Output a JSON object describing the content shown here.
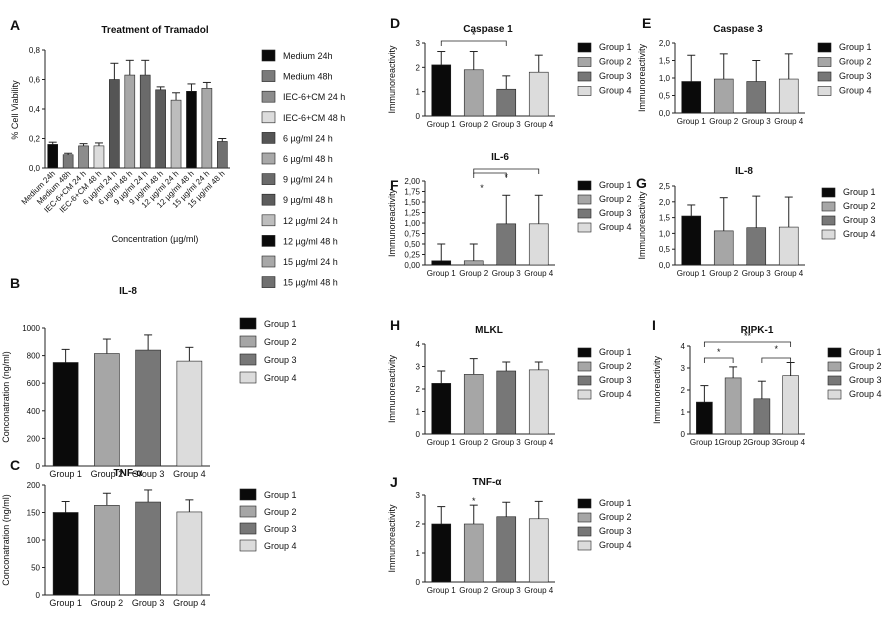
{
  "chart_data": [
    {
      "panel": "A",
      "type": "bar",
      "title": "Treatment of Tramadol",
      "xlabel": "Concentration (µg/ml)",
      "ylabel": "% Cell Viability",
      "ylim": [
        0,
        0.8
      ],
      "yticks": [
        "0,0",
        "0,2",
        "0,4",
        "0,6",
        "0,8"
      ],
      "categories": [
        "Medium 24h",
        "Medium 48h",
        "IEC-6+CM 24 h",
        "IEC-6+CM 48 h",
        "6 µg/ml 24 h",
        "6 µg/ml 48 h",
        "9 µg/ml 24 h",
        "9 µg/ml 48 h",
        "12 µg/ml 24 h",
        "12 µg/ml 48 h",
        "15 µg/ml 24 h",
        "15 µg/ml 48 h"
      ],
      "values": [
        0.16,
        0.09,
        0.15,
        0.15,
        0.6,
        0.63,
        0.63,
        0.53,
        0.46,
        0.52,
        0.54,
        0.18
      ],
      "errors": [
        0.015,
        0.01,
        0.015,
        0.02,
        0.11,
        0.1,
        0.1,
        0.02,
        0.05,
        0.05,
        0.04,
        0.02
      ],
      "colors": [
        "#0a0a0a",
        "#7a7a7a",
        "#8c8c8c",
        "#dcdcdc",
        "#555555",
        "#a8a8a8",
        "#6a6a6a",
        "#5c5c5c",
        "#bdbdbd",
        "#0a0a0a",
        "#a8a8a8",
        "#707070"
      ],
      "legend": [
        "Medium 24h",
        "Medium 48h",
        "IEC-6+CM 24 h",
        "IEC-6+CM 48 h",
        "6 µg/ml 24 h",
        "6 µg/ml 48 h",
        "9 µg/ml 24 h",
        "9 µg/ml 48 h",
        "12 µg/ml 24 h",
        "12 µg/ml 48 h",
        "15 µg/ml 24 h",
        "15 µg/ml 48 h"
      ]
    },
    {
      "panel": "B",
      "type": "bar",
      "title": "IL-8",
      "ylabel": "Conconatration (ng/ml)",
      "ylim": [
        0,
        1000
      ],
      "yticks": [
        "0",
        "200",
        "400",
        "600",
        "800",
        "1000"
      ],
      "categories": [
        "Group 1",
        "Group 2",
        "Group 3",
        "Group 4"
      ],
      "values": [
        750,
        815,
        840,
        760
      ],
      "errors": [
        95,
        105,
        110,
        100
      ],
      "legend": [
        "Group 1",
        "Group 2",
        "Group 3",
        "Group 4"
      ]
    },
    {
      "panel": "C",
      "type": "bar",
      "title": "TNF-α",
      "ylabel": "Conconatration (ng/ml)",
      "ylim": [
        0,
        200
      ],
      "yticks": [
        "0",
        "50",
        "100",
        "150",
        "200"
      ],
      "categories": [
        "Group 1",
        "Group 2",
        "Group 3",
        "Group 4"
      ],
      "values": [
        150,
        163,
        169,
        151
      ],
      "errors": [
        20,
        22,
        22,
        22
      ],
      "legend": [
        "Group 1",
        "Group 2",
        "Group 3",
        "Group 4"
      ]
    },
    {
      "panel": "D",
      "type": "bar",
      "title": "Caspase 1",
      "ylabel": "Immunoreactivity",
      "ylim": [
        0,
        3
      ],
      "yticks": [
        "0",
        "1",
        "2",
        "3"
      ],
      "categories": [
        "Group 1",
        "Group 2",
        "Group 3",
        "Group 4"
      ],
      "values": [
        2.1,
        1.9,
        1.1,
        1.8
      ],
      "errors": [
        0.55,
        0.75,
        0.55,
        0.7
      ],
      "legend": [
        "Group 1",
        "Group 2",
        "Group 3",
        "Group 4"
      ],
      "significance": [
        {
          "from": 0,
          "to": 2,
          "label": "*"
        }
      ]
    },
    {
      "panel": "E",
      "type": "bar",
      "title": "Caspase 3",
      "ylabel": "Immunoreactivity",
      "ylim": [
        0,
        2
      ],
      "yticks": [
        "0,0",
        "0,5",
        "1,0",
        "1,5",
        "2,0"
      ],
      "categories": [
        "Group 1",
        "Group 2",
        "Group 3",
        "Group 4"
      ],
      "values": [
        0.9,
        0.97,
        0.9,
        0.97
      ],
      "errors": [
        0.75,
        0.72,
        0.6,
        0.72
      ],
      "legend": [
        "Group 1",
        "Group 2",
        "Group 3",
        "Group 4"
      ]
    },
    {
      "panel": "F",
      "type": "bar",
      "title": "IL-6",
      "ylabel": "Immunoreactivity",
      "ylim": [
        0,
        2
      ],
      "yticks": [
        "0,00",
        "0,25",
        "0,50",
        "0,75",
        "1,00",
        "1,25",
        "1,50",
        "1,75",
        "2,00"
      ],
      "categories": [
        "Group 1",
        "Group 2",
        "Group 3",
        "Group 4"
      ],
      "values": [
        0.1,
        0.1,
        0.98,
        0.98
      ],
      "errors": [
        0.4,
        0.4,
        0.68,
        0.68
      ],
      "legend": [
        "Group 1",
        "Group 2",
        "Group 3",
        "Group 4"
      ],
      "significance": [
        {
          "from": 1,
          "to": 2,
          "label": "*"
        },
        {
          "from": 1,
          "to": 3,
          "label": "*"
        }
      ]
    },
    {
      "panel": "G",
      "type": "bar",
      "title": "IL-8",
      "ylabel": "Immunoreactivity",
      "ylim": [
        0,
        2.5
      ],
      "yticks": [
        "0,0",
        "0,5",
        "1,0",
        "1,5",
        "2,0",
        "2,5"
      ],
      "categories": [
        "Group 1",
        "Group 2",
        "Group 3",
        "Group 4"
      ],
      "values": [
        1.55,
        1.08,
        1.18,
        1.2
      ],
      "errors": [
        0.35,
        1.05,
        1.0,
        0.95
      ],
      "legend": [
        "Group 1",
        "Group 2",
        "Group 3",
        "Group 4"
      ]
    },
    {
      "panel": "H",
      "type": "bar",
      "title": "MLKL",
      "ylabel": "Immunoreactivity",
      "ylim": [
        0,
        4
      ],
      "yticks": [
        "0",
        "1",
        "2",
        "3",
        "4"
      ],
      "categories": [
        "Group 1",
        "Group 2",
        "Group 3",
        "Group 4"
      ],
      "values": [
        2.25,
        2.65,
        2.8,
        2.85
      ],
      "errors": [
        0.55,
        0.7,
        0.4,
        0.35
      ],
      "legend": [
        "Group 1",
        "Group 2",
        "Group 3",
        "Group 4"
      ]
    },
    {
      "panel": "I",
      "type": "bar",
      "title": "RIPK-1",
      "ylabel": "Immunoreactivity",
      "ylim": [
        0,
        4
      ],
      "yticks": [
        "0",
        "1",
        "2",
        "3",
        "4"
      ],
      "categories": [
        "Group 1",
        "Group 2",
        "Group 3",
        "Group 4"
      ],
      "values": [
        1.45,
        2.55,
        1.6,
        2.65
      ],
      "errors": [
        0.75,
        0.5,
        0.8,
        0.6
      ],
      "legend": [
        "Group 1",
        "Group 2",
        "Group 3",
        "Group 4"
      ],
      "significance": [
        {
          "from": 0,
          "to": 1,
          "label": "*"
        },
        {
          "from": 2,
          "to": 3,
          "label": "*"
        },
        {
          "from": 0,
          "to": 3,
          "label": "**"
        }
      ]
    },
    {
      "panel": "J",
      "type": "bar",
      "title": "TNF-α",
      "ylabel": "Immunoreactivity",
      "ylim": [
        0,
        3
      ],
      "yticks": [
        "0",
        "1",
        "2",
        "3"
      ],
      "categories": [
        "Group 1",
        "Group 2",
        "Group 3",
        "Group 4"
      ],
      "values": [
        2.0,
        2.0,
        2.25,
        2.18
      ],
      "errors": [
        0.6,
        0.65,
        0.5,
        0.6
      ],
      "legend": [
        "Group 1",
        "Group 2",
        "Group 3",
        "Group 4"
      ],
      "marks": [
        {
          "index": 1,
          "label": "*"
        }
      ]
    }
  ],
  "group_colors": [
    "#0a0a0a",
    "#a6a6a6",
    "#777777",
    "#dcdcdc"
  ]
}
